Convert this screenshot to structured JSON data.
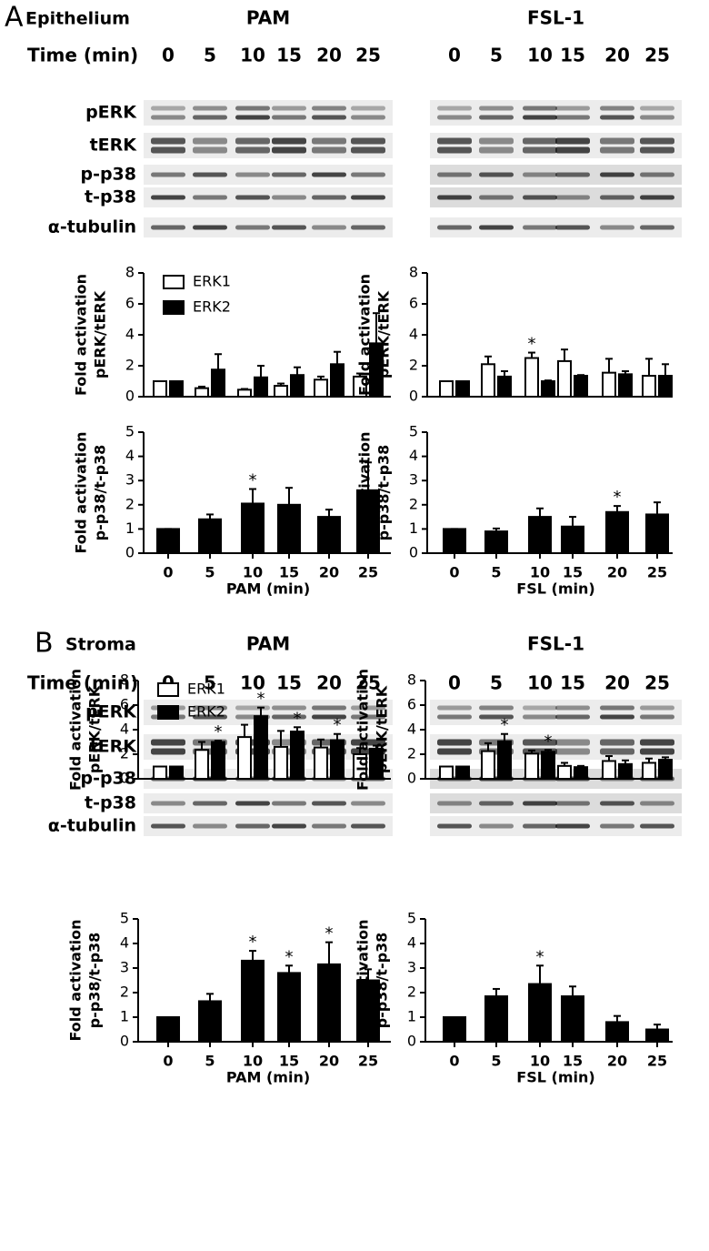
{
  "panels": [
    {
      "letter": "A",
      "tissue": "Epithelium",
      "time_label": "Time (min)",
      "rows": [
        "pERK",
        "tERK",
        "p-p38",
        "t-p38",
        "α-tubulin"
      ],
      "blots": [
        {
          "treatment": "PAM",
          "times": [
            0,
            5,
            10,
            15,
            20,
            25
          ]
        },
        {
          "treatment": "FSL-1",
          "times": [
            0,
            5,
            10,
            15,
            20,
            25
          ]
        }
      ]
    },
    {
      "letter": "B",
      "tissue": "Stroma",
      "time_label": "Time (min)",
      "rows": [
        "pERK",
        "tERK",
        "p-p38",
        "t-p38",
        "α-tubulin"
      ],
      "blots": [
        {
          "treatment": "PAM",
          "times": [
            0,
            5,
            10,
            15,
            20,
            25
          ]
        },
        {
          "treatment": "FSL-1",
          "times": [
            0,
            5,
            10,
            15,
            20,
            25
          ]
        }
      ]
    }
  ],
  "chart_data": [
    {
      "type": "bar",
      "y_label": [
        "Fold activation",
        "pERK/tERK"
      ],
      "ylim": [
        0,
        8
      ],
      "yticks": [
        0,
        2,
        4,
        6,
        8
      ],
      "series": [
        {
          "name": "ERK1",
          "color": "#ffffff",
          "values": [
            1,
            0.55,
            0.45,
            0.7,
            1.1,
            1.3
          ],
          "errors": [
            0,
            0.1,
            0.05,
            0.15,
            0.2,
            0.2
          ],
          "significance": [
            null,
            null,
            null,
            null,
            null,
            null
          ]
        },
        {
          "name": "ERK2",
          "color": "#000000",
          "values": [
            1,
            1.75,
            1.25,
            1.4,
            2.1,
            3.45
          ],
          "errors": [
            0,
            1.0,
            0.75,
            0.5,
            0.8,
            1.95
          ],
          "significance": [
            null,
            null,
            null,
            null,
            null,
            null
          ]
        }
      ]
    },
    {
      "type": "bar",
      "y_label": [
        "Fold activation",
        "pERK/tERK"
      ],
      "ylim": [
        0,
        8
      ],
      "yticks": [
        0,
        2,
        4,
        6,
        8
      ],
      "series": [
        {
          "color": "#ffffff",
          "values": [
            1,
            2.1,
            2.5,
            2.3,
            1.55,
            1.35
          ],
          "errors": [
            0,
            0.5,
            0.35,
            0.75,
            0.9,
            1.1
          ],
          "significance": [
            null,
            null,
            "*",
            null,
            null,
            null
          ]
        },
        {
          "color": "#000000",
          "values": [
            1,
            1.3,
            1.0,
            1.35,
            1.45,
            1.35
          ],
          "errors": [
            0,
            0.35,
            0.05,
            0.05,
            0.2,
            0.75
          ],
          "significance": [
            null,
            null,
            null,
            null,
            null,
            null
          ]
        }
      ]
    },
    {
      "type": "bar",
      "y_label": [
        "Fold activation",
        "p-p38/t-p38"
      ],
      "x_label": "PAM (min)",
      "categories": [
        0,
        5,
        10,
        15,
        20,
        25
      ],
      "ylim": [
        0,
        5
      ],
      "yticks": [
        0,
        1,
        2,
        3,
        4,
        5
      ],
      "series": [
        {
          "color": "#000000",
          "values": [
            1,
            1.4,
            2.05,
            2.0,
            1.5,
            2.6
          ],
          "errors": [
            0,
            0.2,
            0.6,
            0.7,
            0.3,
            1.15
          ],
          "significance": [
            null,
            null,
            "*",
            null,
            null,
            null
          ]
        }
      ]
    },
    {
      "type": "bar",
      "y_label": [
        "Fold activation",
        "p-p38/t-p38"
      ],
      "x_label": "FSL (min)",
      "categories": [
        0,
        5,
        10,
        15,
        20,
        25
      ],
      "ylim": [
        0,
        5
      ],
      "yticks": [
        0,
        1,
        2,
        3,
        4,
        5
      ],
      "series": [
        {
          "color": "#000000",
          "values": [
            1,
            0.9,
            1.5,
            1.1,
            1.7,
            1.6
          ],
          "errors": [
            0,
            0.12,
            0.35,
            0.4,
            0.25,
            0.5
          ],
          "significance": [
            null,
            null,
            null,
            null,
            "*",
            null
          ]
        }
      ]
    },
    {
      "type": "bar",
      "y_label": [
        "Fold activation",
        "pERK/tERK"
      ],
      "ylim": [
        0,
        8
      ],
      "yticks": [
        0,
        2,
        4,
        6,
        8
      ],
      "series": [
        {
          "name": "ERK1",
          "color": "#ffffff",
          "values": [
            1,
            2.35,
            3.4,
            2.6,
            2.55,
            2.0
          ],
          "errors": [
            0,
            0.65,
            1.0,
            1.3,
            0.65,
            0.5
          ],
          "significance": [
            null,
            null,
            null,
            null,
            null,
            null
          ]
        },
        {
          "name": "ERK2",
          "color": "#000000",
          "values": [
            1,
            3.0,
            5.1,
            3.85,
            3.15,
            2.45
          ],
          "errors": [
            0,
            0.1,
            0.7,
            0.35,
            0.5,
            0.25
          ],
          "significance": [
            null,
            "*",
            "*",
            "*",
            "*",
            null
          ]
        }
      ]
    },
    {
      "type": "bar",
      "y_label": [
        "Fold activation",
        "pERK/tERK"
      ],
      "ylim": [
        0,
        8
      ],
      "yticks": [
        0,
        2,
        4,
        6,
        8
      ],
      "series": [
        {
          "color": "#ffffff",
          "values": [
            1,
            2.25,
            2.05,
            1.05,
            1.45,
            1.3
          ],
          "errors": [
            0,
            0.65,
            0.25,
            0.25,
            0.4,
            0.35
          ],
          "significance": [
            null,
            null,
            null,
            null,
            null,
            null
          ]
        },
        {
          "color": "#000000",
          "values": [
            1,
            3.05,
            2.2,
            0.95,
            1.2,
            1.55
          ],
          "errors": [
            0,
            0.6,
            0.15,
            0.1,
            0.3,
            0.2
          ],
          "significance": [
            null,
            "*",
            "*",
            null,
            null,
            null
          ]
        }
      ]
    },
    {
      "type": "bar",
      "y_label": [
        "Fold activation",
        "p-p38/t-p38"
      ],
      "x_label": "PAM (min)",
      "categories": [
        0,
        5,
        10,
        15,
        20,
        25
      ],
      "ylim": [
        0,
        5
      ],
      "yticks": [
        0,
        1,
        2,
        3,
        4,
        5
      ],
      "series": [
        {
          "color": "#000000",
          "values": [
            1,
            1.65,
            3.3,
            2.8,
            3.15,
            2.5
          ],
          "errors": [
            0,
            0.3,
            0.4,
            0.3,
            0.9,
            0.45
          ],
          "significance": [
            null,
            null,
            "*",
            "*",
            "*",
            null
          ]
        }
      ]
    },
    {
      "type": "bar",
      "y_label": [
        "Fold activation",
        "p-p38/t-p38"
      ],
      "x_label": "FSL (min)",
      "categories": [
        0,
        5,
        10,
        15,
        20,
        25
      ],
      "ylim": [
        0,
        5
      ],
      "yticks": [
        0,
        1,
        2,
        3,
        4,
        5
      ],
      "series": [
        {
          "color": "#000000",
          "values": [
            1,
            1.85,
            2.35,
            1.85,
            0.8,
            0.5
          ],
          "errors": [
            0,
            0.3,
            0.75,
            0.4,
            0.25,
            0.2
          ],
          "significance": [
            null,
            null,
            "*",
            null,
            null,
            null
          ]
        }
      ]
    }
  ]
}
